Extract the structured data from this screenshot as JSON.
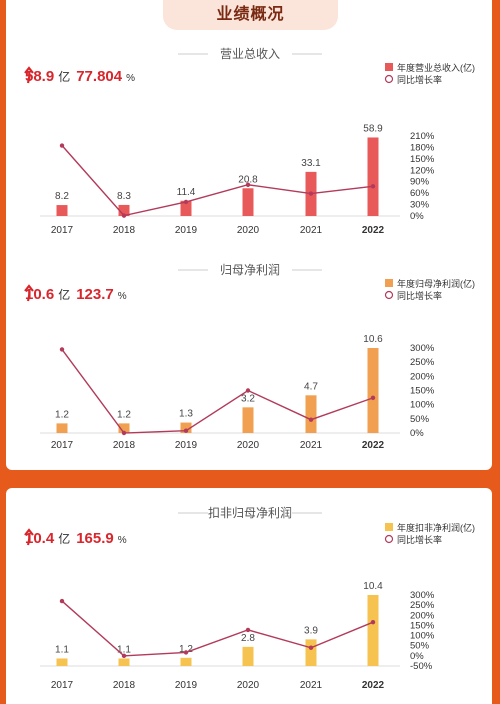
{
  "header": {
    "title": "业绩概况"
  },
  "charts": [
    {
      "section_title": "营业总收入",
      "kpi": {
        "value": "58.9",
        "value_unit": "亿",
        "growth": "77.804",
        "growth_unit": "%"
      },
      "legend": {
        "bar": "年度营业总收入(亿)",
        "line": "同比增长率"
      },
      "colors": {
        "bar": "#e85a5a",
        "line": "#b23a5a"
      }
    },
    {
      "section_title": "归母净利润",
      "kpi": {
        "value": "10.6",
        "value_unit": "亿",
        "growth": "123.7",
        "growth_unit": "%"
      },
      "legend": {
        "bar": "年度归母净利润(亿)",
        "line": "同比增长率"
      },
      "colors": {
        "bar": "#f0a050",
        "line": "#b23a5a"
      }
    },
    {
      "section_title": "扣非归母净利润",
      "kpi": {
        "value": "10.4",
        "value_unit": "亿",
        "growth": "165.9",
        "growth_unit": "%"
      },
      "legend": {
        "bar": "年度扣非净利润(亿)",
        "line": "同比增长率"
      },
      "colors": {
        "bar": "#f6c350",
        "line": "#b23a5a"
      }
    }
  ],
  "chart_data": [
    {
      "type": "bar",
      "title": "营业总收入",
      "categories": [
        "2017",
        "2018",
        "2019",
        "2020",
        "2021",
        "2022"
      ],
      "series": [
        {
          "name": "年度营业总收入(亿)",
          "type": "bar",
          "values": [
            8.2,
            8.3,
            11.4,
            20.8,
            33.1,
            58.9
          ],
          "value_labels": [
            "8.2",
            "8.3",
            "11.4",
            "20.8",
            "33.1",
            "58.9"
          ]
        },
        {
          "name": "同比增长率",
          "type": "line",
          "axis": "right",
          "values": [
            185,
            1,
            37,
            82,
            59,
            78
          ]
        }
      ],
      "bar_ylim": [
        0,
        60
      ],
      "right_axis": {
        "ticks": [
          "210%",
          "180%",
          "150%",
          "120%",
          "90%",
          "60%",
          "30%",
          "0%"
        ],
        "ylim": [
          0,
          210
        ]
      },
      "legend_position": "top-right"
    },
    {
      "type": "bar",
      "title": "归母净利润",
      "categories": [
        "2017",
        "2018",
        "2019",
        "2020",
        "2021",
        "2022"
      ],
      "series": [
        {
          "name": "年度归母净利润(亿)",
          "type": "bar",
          "values": [
            1.2,
            1.2,
            1.3,
            3.2,
            4.7,
            10.6
          ],
          "value_labels": [
            "1.2",
            "1.2",
            "1.3",
            "3.2",
            "4.7",
            "10.6"
          ]
        },
        {
          "name": "同比增长率",
          "type": "line",
          "axis": "right",
          "values": [
            295,
            0,
            8,
            150,
            47,
            124
          ]
        }
      ],
      "bar_ylim": [
        0,
        10.6
      ],
      "right_axis": {
        "ticks": [
          "300%",
          "250%",
          "200%",
          "150%",
          "100%",
          "50%",
          "0%"
        ],
        "ylim": [
          0,
          300
        ]
      },
      "legend_position": "top-right"
    },
    {
      "type": "bar",
      "title": "扣非归母净利润",
      "categories": [
        "2017",
        "2018",
        "2019",
        "2020",
        "2021",
        "2022"
      ],
      "series": [
        {
          "name": "年度扣非净利润(亿)",
          "type": "bar",
          "values": [
            1.1,
            1.1,
            1.2,
            2.8,
            3.9,
            10.4
          ],
          "value_labels": [
            "1.1",
            "1.1",
            "1.2",
            "2.8",
            "3.9",
            "10.4"
          ]
        },
        {
          "name": "同比增长率",
          "type": "line",
          "axis": "right",
          "values": [
            270,
            0,
            17,
            128,
            40,
            166
          ]
        }
      ],
      "bar_ylim": [
        0,
        10.4
      ],
      "right_axis": {
        "ticks": [
          "300%",
          "250%",
          "200%",
          "150%",
          "100%",
          "50%",
          "0%",
          "-50%"
        ],
        "ylim": [
          -50,
          300
        ]
      },
      "legend_position": "top-right"
    }
  ]
}
